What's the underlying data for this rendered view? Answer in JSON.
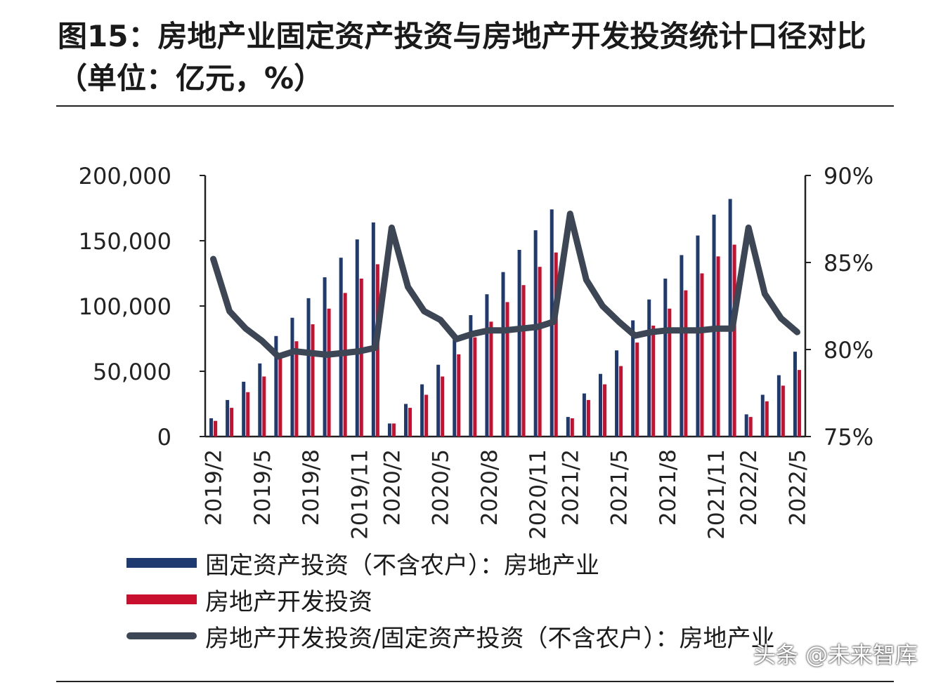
{
  "header": {
    "title": "图15：房地产业固定资产投资与房地产开发投资统计口径对比（单位：亿元，%）"
  },
  "colors": {
    "fixed_investment": "#1f3a6e",
    "development_investment": "#c8102e",
    "ratio": "#3d4654"
  },
  "legend": {
    "items": [
      {
        "label": "固定资产投资（不含农户）：房地产业",
        "style": "bar",
        "color": "#1f3a6e"
      },
      {
        "label": "房地产开发投资",
        "style": "bar",
        "color": "#c8102e"
      },
      {
        "label": "房地产开发投资/固定资产投资（不含农户）：房地产业",
        "style": "line",
        "color": "#3d4654"
      }
    ]
  },
  "watermark": "头条 @未来智库",
  "chart_data": {
    "type": "bar",
    "x": [
      "2019/2",
      "2019/3",
      "2019/4",
      "2019/5",
      "2019/6",
      "2019/7",
      "2019/8",
      "2019/9",
      "2019/10",
      "2019/11",
      "2019/12",
      "2020/2",
      "2020/3",
      "2020/4",
      "2020/5",
      "2020/6",
      "2020/7",
      "2020/8",
      "2020/9",
      "2020/10",
      "2020/11",
      "2020/12",
      "2021/2",
      "2021/3",
      "2021/4",
      "2021/5",
      "2021/6",
      "2021/7",
      "2021/8",
      "2021/9",
      "2021/10",
      "2021/11",
      "2021/12",
      "2022/2",
      "2022/3",
      "2022/4",
      "2022/5"
    ],
    "x_tick_labels": [
      "2019/2",
      "2019/5",
      "2019/8",
      "2019/11",
      "2020/2",
      "2020/5",
      "2020/8",
      "2020/11",
      "2021/2",
      "2021/5",
      "2021/8",
      "2021/11",
      "2022/2",
      "2022/5"
    ],
    "series": [
      {
        "name": "固定资产投资（不含农户）：房地产业",
        "type": "bar",
        "axis": "left",
        "values": [
          14000,
          28000,
          42000,
          56000,
          77000,
          91000,
          106000,
          122000,
          137000,
          151000,
          164000,
          10000,
          25000,
          40000,
          55000,
          75000,
          93000,
          109000,
          126000,
          143000,
          158000,
          174000,
          15000,
          33000,
          48000,
          66000,
          89000,
          105000,
          121000,
          139000,
          154000,
          170000,
          182000,
          17000,
          32000,
          47000,
          65000
        ]
      },
      {
        "name": "房地产开发投资",
        "type": "bar",
        "axis": "left",
        "values": [
          12000,
          22000,
          34000,
          46000,
          62000,
          73000,
          86000,
          98000,
          110000,
          121000,
          132000,
          10000,
          22000,
          32000,
          46000,
          63000,
          76000,
          88000,
          103000,
          116000,
          130000,
          141000,
          14000,
          28000,
          40000,
          54000,
          72000,
          85000,
          98000,
          112000,
          125000,
          138000,
          147000,
          15000,
          27000,
          39000,
          51000
        ]
      },
      {
        "name": "房地产开发投资/固定资产投资（不含农户）：房地产业",
        "type": "line",
        "axis": "right",
        "values": [
          85.2,
          82.2,
          81.2,
          80.5,
          79.6,
          79.9,
          79.8,
          79.7,
          79.8,
          79.9,
          80.1,
          87.0,
          83.6,
          82.2,
          81.7,
          80.6,
          80.9,
          81.1,
          81.1,
          81.2,
          81.3,
          81.6,
          87.8,
          84.0,
          82.5,
          81.6,
          80.8,
          81.0,
          81.1,
          81.1,
          81.1,
          81.2,
          81.2,
          87.0,
          83.2,
          81.8,
          81.0
        ]
      }
    ],
    "y_left": {
      "ylim": [
        0,
        200000
      ],
      "ticks": [
        "0",
        "50,000",
        "100,000",
        "150,000",
        "200,000"
      ],
      "tick_values": [
        0,
        50000,
        100000,
        150000,
        200000
      ]
    },
    "y_right": {
      "ylim": [
        75,
        90
      ],
      "ticks": [
        "75%",
        "80%",
        "85%",
        "90%"
      ],
      "tick_values": [
        75,
        80,
        85,
        90
      ]
    },
    "grid": false,
    "legend_position": "bottom-left"
  }
}
